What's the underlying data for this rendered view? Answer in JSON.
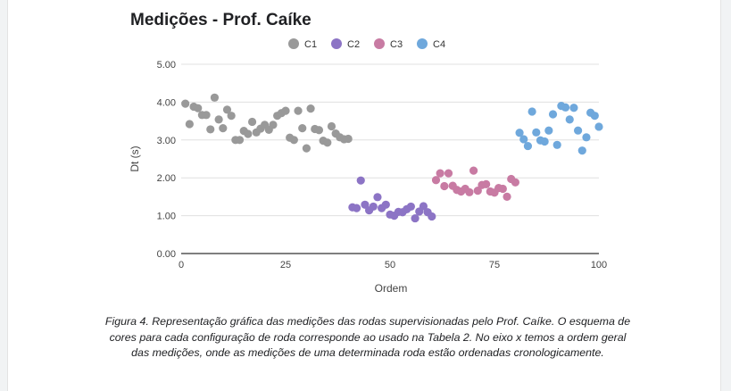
{
  "chart_data": {
    "type": "scatter",
    "title": "Medições - Prof. Caíke",
    "xlabel": "Ordem",
    "ylabel": "Dt (s)",
    "xlim": [
      0,
      100
    ],
    "ylim": [
      0,
      5
    ],
    "xticks": [
      "0",
      "25",
      "50",
      "75",
      "100"
    ],
    "yticks": [
      "0.00",
      "1.00",
      "2.00",
      "3.00",
      "4.00",
      "5.00"
    ],
    "grid": "horizontal",
    "legend_position": "top",
    "series": [
      {
        "name": "C1",
        "color": "#999999",
        "points": [
          [
            1,
            3.96
          ],
          [
            2,
            3.42
          ],
          [
            3,
            3.88
          ],
          [
            4,
            3.84
          ],
          [
            5,
            3.66
          ],
          [
            6,
            3.66
          ],
          [
            7,
            3.28
          ],
          [
            8,
            4.12
          ],
          [
            9,
            3.54
          ],
          [
            10,
            3.31
          ],
          [
            11,
            3.8
          ],
          [
            12,
            3.64
          ],
          [
            13,
            3.0
          ],
          [
            14,
            3.0
          ],
          [
            15,
            3.24
          ],
          [
            16,
            3.16
          ],
          [
            17,
            3.48
          ],
          [
            18,
            3.2
          ],
          [
            19,
            3.3
          ],
          [
            20,
            3.4
          ],
          [
            21,
            3.27
          ],
          [
            22,
            3.4
          ],
          [
            23,
            3.64
          ],
          [
            24,
            3.71
          ],
          [
            25,
            3.77
          ],
          [
            26,
            3.06
          ],
          [
            27,
            3.0
          ],
          [
            28,
            3.77
          ],
          [
            29,
            3.31
          ],
          [
            30,
            2.78
          ],
          [
            31,
            3.83
          ],
          [
            32,
            3.29
          ],
          [
            33,
            3.26
          ],
          [
            34,
            2.98
          ],
          [
            35,
            2.93
          ],
          [
            36,
            3.36
          ],
          [
            37,
            3.17
          ],
          [
            38,
            3.07
          ],
          [
            39,
            3.02
          ],
          [
            40,
            3.03
          ]
        ]
      },
      {
        "name": "C2",
        "color": "#8c74c5",
        "points": [
          [
            41,
            1.22
          ],
          [
            42,
            1.2
          ],
          [
            43,
            1.93
          ],
          [
            44,
            1.29
          ],
          [
            45,
            1.14
          ],
          [
            46,
            1.24
          ],
          [
            47,
            1.49
          ],
          [
            48,
            1.2
          ],
          [
            49,
            1.29
          ],
          [
            50,
            1.03
          ],
          [
            51,
            1.0
          ],
          [
            52,
            1.1
          ],
          [
            53,
            1.09
          ],
          [
            54,
            1.17
          ],
          [
            55,
            1.24
          ],
          [
            56,
            0.93
          ],
          [
            57,
            1.11
          ],
          [
            58,
            1.25
          ],
          [
            59,
            1.09
          ],
          [
            60,
            0.98
          ]
        ]
      },
      {
        "name": "C3",
        "color": "#c87ba3",
        "points": [
          [
            61,
            1.94
          ],
          [
            62,
            2.12
          ],
          [
            63,
            1.78
          ],
          [
            64,
            2.12
          ],
          [
            65,
            1.79
          ],
          [
            66,
            1.68
          ],
          [
            67,
            1.64
          ],
          [
            68,
            1.71
          ],
          [
            69,
            1.62
          ],
          [
            70,
            2.19
          ],
          [
            71,
            1.66
          ],
          [
            72,
            1.81
          ],
          [
            73,
            1.83
          ],
          [
            74,
            1.64
          ],
          [
            75,
            1.61
          ],
          [
            76,
            1.73
          ],
          [
            77,
            1.71
          ],
          [
            78,
            1.5
          ],
          [
            79,
            1.97
          ],
          [
            80,
            1.88
          ]
        ]
      },
      {
        "name": "C4",
        "color": "#6fa8dc",
        "points": [
          [
            81,
            3.19
          ],
          [
            82,
            3.02
          ],
          [
            83,
            2.84
          ],
          [
            84,
            3.75
          ],
          [
            85,
            3.2
          ],
          [
            86,
            2.99
          ],
          [
            87,
            2.96
          ],
          [
            88,
            3.25
          ],
          [
            89,
            3.68
          ],
          [
            90,
            2.87
          ],
          [
            91,
            3.9
          ],
          [
            92,
            3.86
          ],
          [
            93,
            3.54
          ],
          [
            94,
            3.85
          ],
          [
            95,
            3.25
          ],
          [
            96,
            2.72
          ],
          [
            97,
            3.07
          ],
          [
            98,
            3.72
          ],
          [
            99,
            3.64
          ],
          [
            100,
            3.35
          ]
        ]
      }
    ]
  },
  "caption": "Figura 4. Representação gráfica das medições das rodas supervisionadas pelo Prof. Caíke. O esquema de cores para cada configuração de roda corresponde ao usado na Tabela 2. No eixo x temos a ordem geral das medições, onde as medições de uma determinada roda estão ordenadas cronologicamente."
}
